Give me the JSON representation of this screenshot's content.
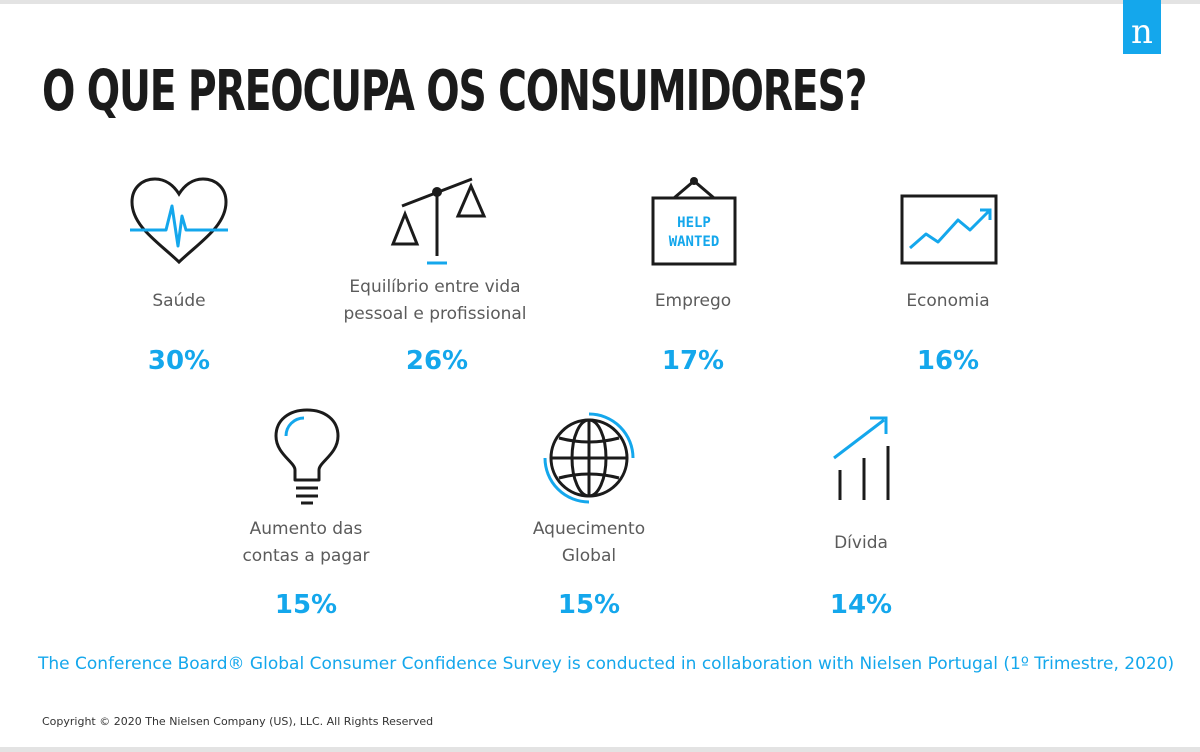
{
  "title": "O QUE PREOCUPA OS CONSUMIDORES?",
  "logo_letter": "n",
  "accent_color": "#14a7ec",
  "concerns": [
    {
      "label": "Saúde",
      "percent": "30%",
      "icon": "heart-pulse-icon"
    },
    {
      "label_line1": "Equilíbrio entre vida",
      "label_line2": "pessoal e profissional",
      "percent": "26%",
      "icon": "scales-icon"
    },
    {
      "label": "Emprego",
      "percent": "17%",
      "icon": "help-wanted-sign-icon",
      "sign_line1": "HELP",
      "sign_line2": "WANTED"
    },
    {
      "label": "Economia",
      "percent": "16%",
      "icon": "rising-chart-icon"
    },
    {
      "label_line1": "Aumento das",
      "label_line2": "contas a pagar",
      "percent": "15%",
      "icon": "lightbulb-icon"
    },
    {
      "label_line1": "Aquecimento",
      "label_line2": "Global",
      "percent": "15%",
      "icon": "globe-icon"
    },
    {
      "label": "Dívida",
      "percent": "14%",
      "icon": "growth-bars-icon"
    }
  ],
  "footnote": "The Conference Board® Global Consumer Confidence Survey is conducted in collaboration with Nielsen Portugal (1º Trimestre, 2020)",
  "copyright": "Copyright © 2020 The Nielsen Company (US), LLC. All Rights Reserved"
}
